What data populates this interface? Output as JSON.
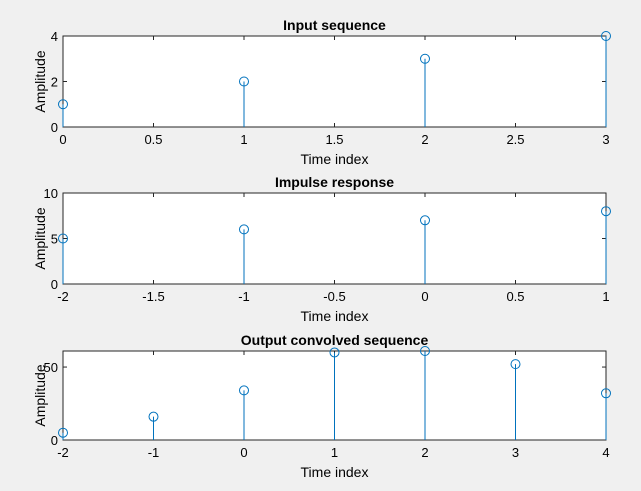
{
  "chart_data": [
    {
      "type": "stem",
      "title": "Input sequence",
      "xlabel": "Time index",
      "ylabel": "Amplitude",
      "xlim": [
        0,
        3
      ],
      "ylim": [
        0,
        4
      ],
      "xticks": [
        0,
        0.5,
        1,
        1.5,
        2,
        2.5,
        3
      ],
      "xtick_labels": [
        "0",
        "0.5",
        "1",
        "1.5",
        "2",
        "2.5",
        "3"
      ],
      "yticks": [
        0,
        2,
        4
      ],
      "ytick_labels": [
        "0",
        "2",
        "4"
      ],
      "x": [
        0,
        1,
        2,
        3
      ],
      "y": [
        1,
        2,
        3,
        4
      ],
      "color": "#0072bd",
      "grid": false
    },
    {
      "type": "stem",
      "title": "Impulse response",
      "xlabel": "Time index",
      "ylabel": "Amplitude",
      "xlim": [
        -2,
        1
      ],
      "ylim": [
        0,
        10
      ],
      "xticks": [
        -2,
        -1.5,
        -1,
        -0.5,
        0,
        0.5,
        1
      ],
      "xtick_labels": [
        "-2",
        "-1.5",
        "-1",
        "-0.5",
        "0",
        "0.5",
        "1"
      ],
      "yticks": [
        0,
        5,
        10
      ],
      "ytick_labels": [
        "0",
        "5",
        "10"
      ],
      "x": [
        -2,
        -1,
        0,
        1
      ],
      "y": [
        5,
        6,
        7,
        8
      ],
      "color": "#0072bd",
      "grid": false
    },
    {
      "type": "stem",
      "title": "Output convolved sequence",
      "xlabel": "Time index",
      "ylabel": "Amplitude",
      "xlim": [
        -2,
        4
      ],
      "ylim": [
        0,
        61
      ],
      "xticks": [
        -2,
        -1,
        0,
        1,
        2,
        3,
        4
      ],
      "xtick_labels": [
        "-2",
        "-1",
        "0",
        "1",
        "2",
        "3",
        "4"
      ],
      "yticks": [
        0,
        50
      ],
      "ytick_labels": [
        "0",
        "50"
      ],
      "x": [
        -2,
        -1,
        0,
        1,
        2,
        3,
        4
      ],
      "y": [
        5,
        16,
        34,
        60,
        61,
        52,
        32
      ],
      "color": "#0072bd",
      "grid": false
    }
  ]
}
